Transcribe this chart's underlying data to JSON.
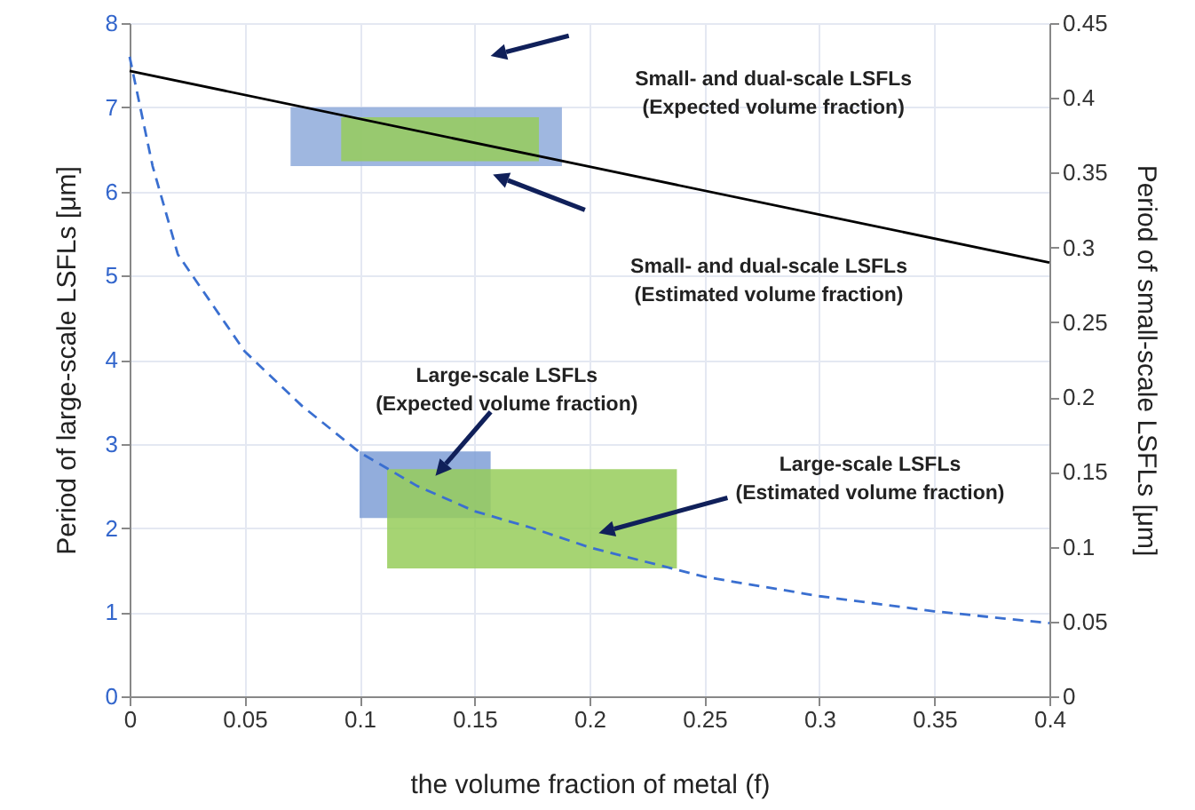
{
  "chart_data": {
    "type": "line",
    "xlabel": "the volume fraction of metal (f)",
    "ylabel": "Period of large-scale LSFLs [μm]",
    "y2label": "Period of small-scale LSFLs [μm]",
    "xlim": [
      0,
      0.4
    ],
    "xticks": [
      0,
      0.05,
      0.1,
      0.15,
      0.2,
      0.25,
      0.3,
      0.35,
      0.4
    ],
    "ylim": [
      0,
      8
    ],
    "yticks": [
      0,
      1,
      2,
      3,
      4,
      5,
      6,
      7,
      8
    ],
    "y2lim": [
      0,
      0.45
    ],
    "y2ticks": [
      0,
      0.05,
      0.1,
      0.15,
      0.2,
      0.25,
      0.3,
      0.35,
      0.4,
      0.45
    ],
    "grid": true,
    "series": [
      {
        "type": "area",
        "color": "#8eaadb",
        "x": [
          0.07,
          0.188
        ],
        "values": [
          null,
          null
        ],
        "lower": [
          6.3,
          6.3
        ],
        "upper": [
          7.0,
          7.0
        ]
      },
      {
        "type": "area",
        "color": "#96cc5a",
        "x": [
          0.092,
          0.178
        ],
        "values": [
          null,
          null
        ],
        "lower": [
          6.36,
          6.36
        ],
        "upper": [
          6.88,
          6.88
        ]
      },
      {
        "type": "area",
        "color": "#7f9fd6",
        "x": [
          0.1,
          0.157
        ],
        "values": [
          null,
          null
        ],
        "lower": [
          2.12,
          2.12
        ],
        "upper": [
          2.91,
          2.91
        ]
      },
      {
        "type": "area",
        "color": "#96cc5a",
        "x": [
          0.112,
          0.238
        ],
        "values": [
          null,
          null
        ],
        "lower": [
          1.52,
          1.52
        ],
        "upper": [
          2.7,
          2.7
        ]
      },
      {
        "type": "line",
        "color": "#3a6fd0",
        "line_style": "dashed",
        "x": [
          0,
          0.01,
          0.021,
          0.05,
          0.075,
          0.1,
          0.125,
          0.15,
          0.175,
          0.2,
          0.25,
          0.3,
          0.35,
          0.4
        ],
        "values": [
          7.6,
          6.3,
          5.25,
          4.1,
          3.45,
          2.9,
          2.5,
          2.2,
          2.0,
          1.77,
          1.42,
          1.19,
          1.01,
          0.87
        ]
      },
      {
        "type": "line",
        "color": "#000000",
        "line_style": "solid",
        "axis": "y2",
        "x": [
          0,
          0.2,
          0.4
        ],
        "values": [
          0.418,
          0.354,
          0.29
        ]
      }
    ],
    "annotations": [
      "Small- and dual-scale  LSFLs\n(Expected volume fraction)",
      "Small- and dual-scale  LSFLs\n(Estimated volume fraction)",
      "Large-scale  LSFLs\n(Expected volume fraction)",
      "Large-scale  LSFLs\n(Estimated volume fraction)"
    ]
  }
}
